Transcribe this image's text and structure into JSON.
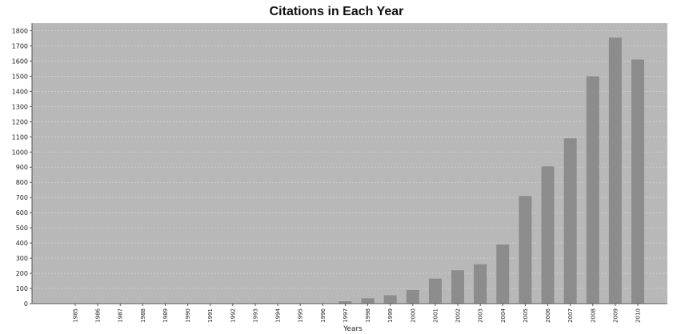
{
  "chart_data": {
    "type": "bar",
    "title": "Citations in Each Year",
    "xlabel": "Years",
    "ylabel": "",
    "ylim": [
      0,
      1850
    ],
    "yticks": [
      0,
      100,
      200,
      300,
      400,
      500,
      600,
      700,
      800,
      900,
      1000,
      1100,
      1200,
      1300,
      1400,
      1500,
      1600,
      1700,
      1800
    ],
    "grid": true,
    "legend": "none",
    "categories": [
      "1985",
      "1986",
      "1987",
      "1988",
      "1989",
      "1990",
      "1991",
      "1992",
      "1993",
      "1994",
      "1995",
      "1996",
      "1997",
      "1998",
      "1999",
      "2000",
      "2001",
      "2002",
      "2003",
      "2004",
      "2005",
      "2006",
      "2007",
      "2008",
      "2009",
      "2010"
    ],
    "values": [
      0,
      0,
      0,
      0,
      0,
      0,
      0,
      0,
      0,
      0,
      0,
      0,
      15,
      35,
      55,
      90,
      165,
      220,
      260,
      390,
      710,
      905,
      1090,
      1500,
      1755,
      1610
    ],
    "colors": {
      "plot_background": "#b8b8b8",
      "bar": "#8c8c8c",
      "grid": "#cfcfcf",
      "axis": "#555555"
    }
  }
}
